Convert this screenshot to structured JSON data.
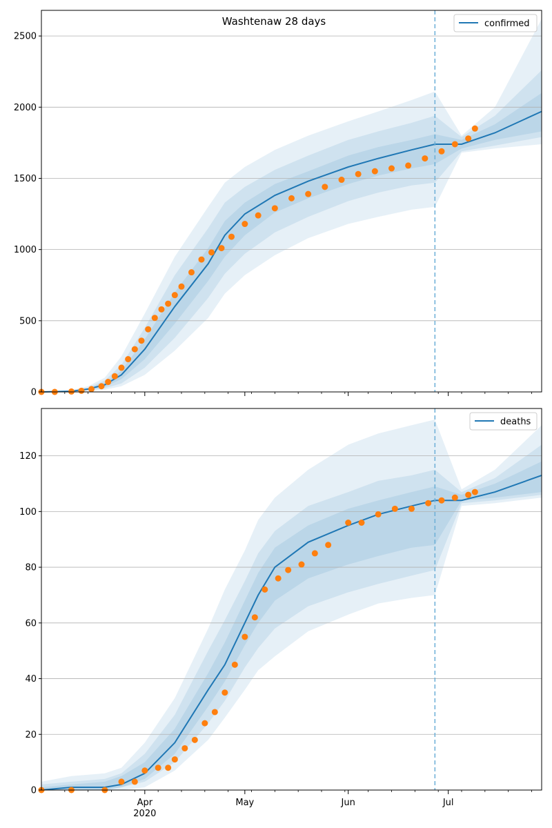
{
  "chart_data": [
    {
      "type": "line",
      "title": "Washtenaw 28 days",
      "xlabel": "",
      "ylabel": "",
      "ylim": [
        0,
        2680
      ],
      "yticks": [
        0,
        500,
        1000,
        1500,
        2000,
        2500
      ],
      "xlim": [
        "2020-03-01",
        "2020-07-29"
      ],
      "xticks_major": [
        {
          "date": "2020-04-01",
          "label": "Apr",
          "sublabel": "2020"
        },
        {
          "date": "2020-05-01",
          "label": "May",
          "sublabel": ""
        },
        {
          "date": "2020-06-01",
          "label": "Jun",
          "sublabel": ""
        },
        {
          "date": "2020-07-01",
          "label": "Jul",
          "sublabel": ""
        }
      ],
      "grid": "horizontal",
      "legend_position": "top-right",
      "forecast_start": "2020-06-27",
      "colors": {
        "model": "#1f77b4",
        "observed": "#ff7f0e",
        "band": "#1f77b4"
      },
      "series": [
        {
          "name": "confirmed",
          "kind": "model-median-with-bands",
          "x": [
            "2020-03-01",
            "2020-03-10",
            "2020-03-15",
            "2020-03-20",
            "2020-03-25",
            "2020-04-01",
            "2020-04-10",
            "2020-04-20",
            "2020-04-25",
            "2020-05-01",
            "2020-05-10",
            "2020-05-20",
            "2020-06-01",
            "2020-06-10",
            "2020-06-20",
            "2020-06-27",
            "2020-07-05",
            "2020-07-15",
            "2020-07-29"
          ],
          "median": [
            0,
            5,
            20,
            50,
            120,
            300,
            600,
            900,
            1100,
            1250,
            1380,
            1480,
            1580,
            1640,
            1700,
            1740,
            1740,
            1820,
            1970
          ],
          "band_inner": [
            [
              0,
              0
            ],
            [
              3,
              7
            ],
            [
              15,
              25
            ],
            [
              35,
              65
            ],
            [
              90,
              150
            ],
            [
              230,
              370
            ],
            [
              480,
              700
            ],
            [
              780,
              1010
            ],
            [
              950,
              1200
            ],
            [
              1100,
              1330
            ],
            [
              1260,
              1460
            ],
            [
              1360,
              1550
            ],
            [
              1460,
              1660
            ],
            [
              1520,
              1720
            ],
            [
              1570,
              1770
            ],
            [
              1600,
              1810
            ],
            [
              1710,
              1770
            ],
            [
              1770,
              1880
            ],
            [
              1830,
              2100
            ]
          ],
          "band_mid": [
            [
              0,
              0
            ],
            [
              2,
              9
            ],
            [
              10,
              30
            ],
            [
              25,
              80
            ],
            [
              60,
              190
            ],
            [
              170,
              450
            ],
            [
              380,
              820
            ],
            [
              660,
              1150
            ],
            [
              830,
              1330
            ],
            [
              970,
              1440
            ],
            [
              1120,
              1560
            ],
            [
              1230,
              1660
            ],
            [
              1340,
              1770
            ],
            [
              1400,
              1830
            ],
            [
              1450,
              1890
            ],
            [
              1470,
              1940
            ],
            [
              1690,
              1790
            ],
            [
              1730,
              1940
            ],
            [
              1790,
              2260
            ]
          ],
          "band_outer": [
            [
              0,
              0
            ],
            [
              1,
              12
            ],
            [
              5,
              40
            ],
            [
              15,
              100
            ],
            [
              40,
              250
            ],
            [
              120,
              550
            ],
            [
              290,
              950
            ],
            [
              520,
              1300
            ],
            [
              690,
              1470
            ],
            [
              820,
              1580
            ],
            [
              960,
              1700
            ],
            [
              1080,
              1800
            ],
            [
              1180,
              1900
            ],
            [
              1230,
              1970
            ],
            [
              1280,
              2050
            ],
            [
              1300,
              2110
            ],
            [
              1680,
              1800
            ],
            [
              1710,
              2000
            ],
            [
              1740,
              2620
            ]
          ]
        },
        {
          "name": "",
          "kind": "observed-points",
          "x": [
            "2020-03-01",
            "2020-03-05",
            "2020-03-10",
            "2020-03-13",
            "2020-03-16",
            "2020-03-19",
            "2020-03-21",
            "2020-03-23",
            "2020-03-25",
            "2020-03-27",
            "2020-03-29",
            "2020-03-31",
            "2020-04-02",
            "2020-04-04",
            "2020-04-06",
            "2020-04-08",
            "2020-04-10",
            "2020-04-12",
            "2020-04-15",
            "2020-04-18",
            "2020-04-21",
            "2020-04-24",
            "2020-04-27",
            "2020-05-01",
            "2020-05-05",
            "2020-05-10",
            "2020-05-15",
            "2020-05-20",
            "2020-05-25",
            "2020-05-30",
            "2020-06-04",
            "2020-06-09",
            "2020-06-14",
            "2020-06-19",
            "2020-06-24",
            "2020-06-29",
            "2020-07-03",
            "2020-07-07",
            "2020-07-09"
          ],
          "values": [
            0,
            0,
            3,
            8,
            20,
            40,
            70,
            110,
            170,
            230,
            300,
            360,
            440,
            520,
            580,
            620,
            680,
            740,
            840,
            930,
            980,
            1010,
            1090,
            1180,
            1240,
            1290,
            1360,
            1390,
            1440,
            1490,
            1530,
            1550,
            1570,
            1590,
            1640,
            1690,
            1740,
            1780,
            1850
          ]
        }
      ]
    },
    {
      "type": "line",
      "title": "",
      "xlabel": "",
      "ylabel": "",
      "ylim": [
        0,
        137
      ],
      "yticks": [
        0,
        20,
        40,
        60,
        80,
        100,
        120
      ],
      "xlim": [
        "2020-03-01",
        "2020-07-29"
      ],
      "xticks_major": [
        {
          "date": "2020-04-01",
          "label": "Apr",
          "sublabel": "2020"
        },
        {
          "date": "2020-05-01",
          "label": "May",
          "sublabel": ""
        },
        {
          "date": "2020-06-01",
          "label": "Jun",
          "sublabel": ""
        },
        {
          "date": "2020-07-01",
          "label": "Jul",
          "sublabel": ""
        }
      ],
      "grid": "horizontal",
      "legend_position": "top-right",
      "forecast_start": "2020-06-27",
      "colors": {
        "model": "#1f77b4",
        "observed": "#ff7f0e",
        "band": "#1f77b4"
      },
      "series": [
        {
          "name": "deaths",
          "kind": "model-median-with-bands",
          "x": [
            "2020-03-01",
            "2020-03-10",
            "2020-03-20",
            "2020-03-25",
            "2020-04-01",
            "2020-04-10",
            "2020-04-20",
            "2020-04-25",
            "2020-05-01",
            "2020-05-05",
            "2020-05-10",
            "2020-05-20",
            "2020-06-01",
            "2020-06-10",
            "2020-06-20",
            "2020-06-27",
            "2020-07-05",
            "2020-07-15",
            "2020-07-29"
          ],
          "median": [
            0,
            1,
            1,
            2,
            6,
            17,
            36,
            45,
            60,
            70,
            80,
            89,
            95,
            99,
            102,
            104,
            104,
            107,
            113
          ],
          "band_inner": [
            [
              0,
              1
            ],
            [
              0,
              2
            ],
            [
              0,
              3
            ],
            [
              1,
              5
            ],
            [
              4,
              10
            ],
            [
              13,
              22
            ],
            [
              30,
              42
            ],
            [
              39,
              53
            ],
            [
              52,
              68
            ],
            [
              60,
              78
            ],
            [
              68,
              87
            ],
            [
              76,
              95
            ],
            [
              81,
              101
            ],
            [
              84,
              104
            ],
            [
              87,
              107
            ],
            [
              88,
              109
            ],
            [
              104,
              106
            ],
            [
              105,
              110
            ],
            [
              107,
              118
            ]
          ],
          "band_mid": [
            [
              0,
              2
            ],
            [
              0,
              3
            ],
            [
              0,
              4
            ],
            [
              1,
              6
            ],
            [
              3,
              13
            ],
            [
              10,
              27
            ],
            [
              24,
              50
            ],
            [
              32,
              61
            ],
            [
              44,
              75
            ],
            [
              51,
              85
            ],
            [
              58,
              93
            ],
            [
              66,
              102
            ],
            [
              71,
              107
            ],
            [
              74,
              111
            ],
            [
              77,
              113
            ],
            [
              79,
              115
            ],
            [
              103,
              107
            ],
            [
              104,
              112
            ],
            [
              106,
              124
            ]
          ],
          "band_outer": [
            [
              0,
              3
            ],
            [
              0,
              5
            ],
            [
              0,
              6
            ],
            [
              0,
              8
            ],
            [
              1,
              17
            ],
            [
              7,
              33
            ],
            [
              18,
              58
            ],
            [
              26,
              72
            ],
            [
              36,
              86
            ],
            [
              43,
              97
            ],
            [
              48,
              105
            ],
            [
              57,
              115
            ],
            [
              63,
              124
            ],
            [
              67,
              128
            ],
            [
              69,
              131
            ],
            [
              70,
              133
            ],
            [
              102,
              108
            ],
            [
              103,
              115
            ],
            [
              105,
              131
            ]
          ]
        },
        {
          "name": "",
          "kind": "observed-points",
          "x": [
            "2020-03-01",
            "2020-03-10",
            "2020-03-20",
            "2020-03-25",
            "2020-03-29",
            "2020-04-01",
            "2020-04-05",
            "2020-04-08",
            "2020-04-10",
            "2020-04-13",
            "2020-04-16",
            "2020-04-19",
            "2020-04-22",
            "2020-04-25",
            "2020-04-28",
            "2020-05-01",
            "2020-05-04",
            "2020-05-07",
            "2020-05-11",
            "2020-05-14",
            "2020-05-18",
            "2020-05-22",
            "2020-05-26",
            "2020-06-01",
            "2020-06-05",
            "2020-06-10",
            "2020-06-15",
            "2020-06-20",
            "2020-06-25",
            "2020-06-29",
            "2020-07-03",
            "2020-07-07",
            "2020-07-09"
          ],
          "values": [
            0,
            0,
            0,
            3,
            3,
            7,
            8,
            8,
            11,
            15,
            18,
            24,
            28,
            35,
            45,
            55,
            62,
            72,
            76,
            79,
            81,
            85,
            88,
            96,
            96,
            99,
            101,
            101,
            103,
            104,
            105,
            106,
            107
          ]
        }
      ]
    }
  ]
}
